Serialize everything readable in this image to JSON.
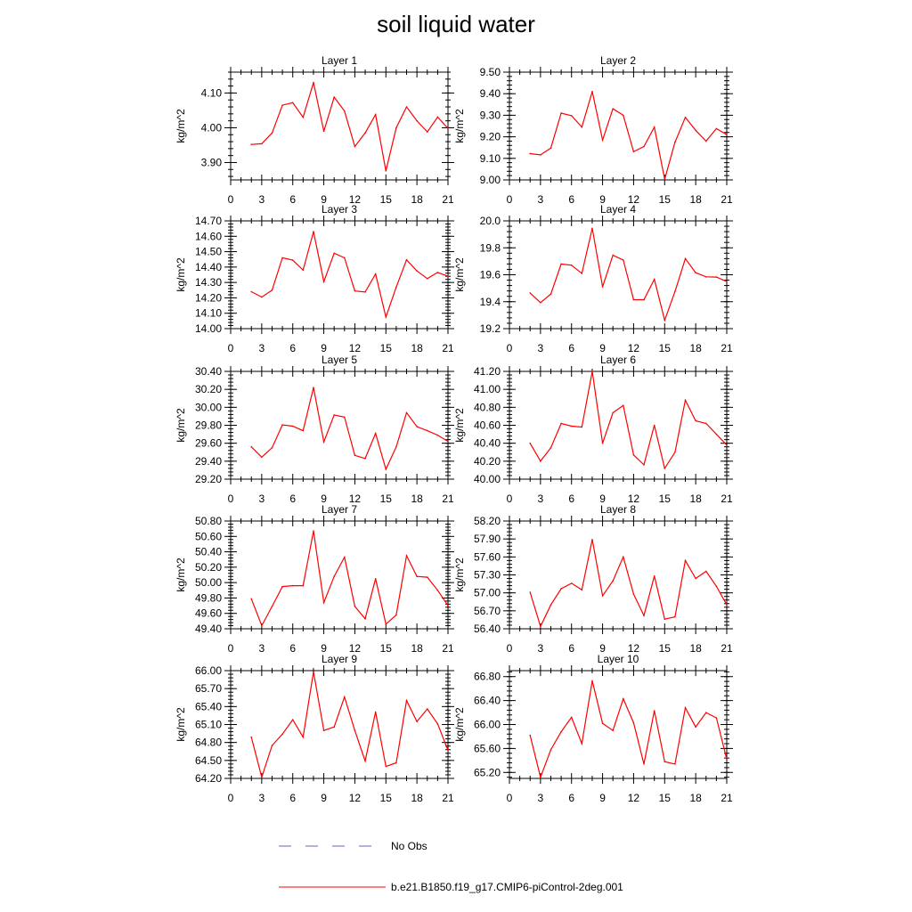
{
  "title": "soil liquid water",
  "legend": {
    "items": [
      {
        "label": "No Obs",
        "color": "#6060c8",
        "style": "dashed"
      },
      {
        "label": "b.e21.B1850.f19_g17.CMIP6-piControl-2deg.001",
        "color": "#ff0000",
        "style": "solid"
      }
    ]
  },
  "chart_data": [
    {
      "type": "line",
      "title": "Layer 1",
      "ylabel": "kg/m^2",
      "xlim": [
        0,
        21
      ],
      "ylim": [
        3.85,
        4.16
      ],
      "xticks": [
        "0",
        "3",
        "6",
        "9",
        "12",
        "15",
        "18",
        "21"
      ],
      "yticks": [
        "3.90",
        "4.00",
        "4.10"
      ],
      "ytick_values": [
        3.9,
        4.0,
        4.1
      ],
      "series": [
        {
          "color": "#ff0000",
          "x": [
            2,
            3,
            4,
            5,
            6,
            7,
            8,
            9,
            10,
            11,
            12,
            13,
            14,
            15,
            16,
            17,
            18,
            19,
            20,
            21
          ],
          "y": [
            3.952,
            3.954,
            3.985,
            4.065,
            4.072,
            4.03,
            4.13,
            3.99,
            4.088,
            4.048,
            3.946,
            3.985,
            4.038,
            3.876,
            4.0,
            4.06,
            4.02,
            3.988,
            4.031,
            3.998
          ]
        }
      ]
    },
    {
      "type": "line",
      "title": "Layer 2",
      "ylabel": "kg/m^2",
      "xlim": [
        0,
        21
      ],
      "ylim": [
        9.0,
        9.5
      ],
      "xticks": [
        "0",
        "3",
        "6",
        "9",
        "12",
        "15",
        "18",
        "21"
      ],
      "yticks": [
        "9.00",
        "9.10",
        "9.20",
        "9.30",
        "9.40",
        "9.50"
      ],
      "ytick_values": [
        9.0,
        9.1,
        9.2,
        9.3,
        9.4,
        9.5
      ],
      "series": [
        {
          "color": "#ff0000",
          "x": [
            2,
            3,
            4,
            5,
            6,
            7,
            8,
            9,
            10,
            11,
            12,
            13,
            14,
            15,
            16,
            17,
            18,
            19,
            20,
            21
          ],
          "y": [
            9.122,
            9.116,
            9.148,
            9.31,
            9.298,
            9.245,
            9.41,
            9.185,
            9.33,
            9.3,
            9.131,
            9.155,
            9.245,
            9.003,
            9.175,
            9.29,
            9.23,
            9.18,
            9.238,
            9.21
          ]
        }
      ]
    },
    {
      "type": "line",
      "title": "Layer 3",
      "ylabel": "kg/m^2",
      "xlim": [
        0,
        21
      ],
      "ylim": [
        14.0,
        14.7
      ],
      "xticks": [
        "0",
        "3",
        "6",
        "9",
        "12",
        "15",
        "18",
        "21"
      ],
      "yticks": [
        "14.00",
        "14.10",
        "14.20",
        "14.30",
        "14.40",
        "14.50",
        "14.60",
        "14.70"
      ],
      "ytick_values": [
        14.0,
        14.1,
        14.2,
        14.3,
        14.4,
        14.5,
        14.6,
        14.7
      ],
      "series": [
        {
          "color": "#ff0000",
          "x": [
            2,
            3,
            4,
            5,
            6,
            7,
            8,
            9,
            10,
            11,
            12,
            13,
            14,
            15,
            16,
            17,
            18,
            19,
            20,
            21
          ],
          "y": [
            14.24,
            14.205,
            14.25,
            14.46,
            14.445,
            14.38,
            14.63,
            14.305,
            14.49,
            14.46,
            14.245,
            14.238,
            14.355,
            14.075,
            14.27,
            14.447,
            14.375,
            14.325,
            14.365,
            14.34
          ]
        }
      ]
    },
    {
      "type": "line",
      "title": "Layer 4",
      "ylabel": "kg/m^2",
      "xlim": [
        0,
        21
      ],
      "ylim": [
        19.2,
        20.0
      ],
      "xticks": [
        "0",
        "3",
        "6",
        "9",
        "12",
        "15",
        "18",
        "21"
      ],
      "yticks": [
        "19.2",
        "19.4",
        "19.6",
        "19.8",
        "20.0"
      ],
      "ytick_values": [
        19.2,
        19.4,
        19.6,
        19.8,
        20.0
      ],
      "series": [
        {
          "color": "#ff0000",
          "x": [
            2,
            3,
            4,
            5,
            6,
            7,
            8,
            9,
            10,
            11,
            12,
            13,
            14,
            15,
            16,
            17,
            18,
            19,
            20,
            21
          ],
          "y": [
            19.465,
            19.393,
            19.457,
            19.68,
            19.671,
            19.61,
            19.945,
            19.51,
            19.745,
            19.71,
            19.415,
            19.415,
            19.566,
            19.262,
            19.476,
            19.72,
            19.615,
            19.585,
            19.583,
            19.55
          ]
        }
      ]
    },
    {
      "type": "line",
      "title": "Layer 5",
      "ylabel": "kg/m^2",
      "xlim": [
        0,
        21
      ],
      "ylim": [
        29.2,
        30.4
      ],
      "xticks": [
        "0",
        "3",
        "6",
        "9",
        "12",
        "15",
        "18",
        "21"
      ],
      "yticks": [
        "29.20",
        "29.40",
        "29.60",
        "29.80",
        "30.00",
        "30.20",
        "30.40"
      ],
      "ytick_values": [
        29.2,
        29.4,
        29.6,
        29.8,
        30.0,
        30.2,
        30.4
      ],
      "series": [
        {
          "color": "#ff0000",
          "x": [
            2,
            3,
            4,
            5,
            6,
            7,
            8,
            9,
            10,
            11,
            12,
            13,
            14,
            15,
            16,
            17,
            18,
            19,
            20,
            21
          ],
          "y": [
            29.56,
            29.445,
            29.55,
            29.805,
            29.79,
            29.74,
            30.22,
            29.615,
            29.915,
            29.89,
            29.465,
            29.43,
            29.71,
            29.31,
            29.56,
            29.94,
            29.785,
            29.74,
            29.69,
            29.62
          ]
        }
      ]
    },
    {
      "type": "line",
      "title": "Layer 6",
      "ylabel": "kg/m^2",
      "xlim": [
        0,
        21
      ],
      "ylim": [
        40.0,
        41.2
      ],
      "xticks": [
        "0",
        "3",
        "6",
        "9",
        "12",
        "15",
        "18",
        "21"
      ],
      "yticks": [
        "40.00",
        "40.20",
        "40.40",
        "40.60",
        "40.80",
        "41.00",
        "41.20"
      ],
      "ytick_values": [
        40.0,
        40.2,
        40.4,
        40.6,
        40.8,
        41.0,
        41.2
      ],
      "series": [
        {
          "color": "#ff0000",
          "x": [
            2,
            3,
            4,
            5,
            6,
            7,
            8,
            9,
            10,
            11,
            12,
            13,
            14,
            15,
            16,
            17,
            18,
            19,
            20,
            21
          ],
          "y": [
            40.4,
            40.2,
            40.35,
            40.62,
            40.59,
            40.58,
            41.2,
            40.4,
            40.74,
            40.82,
            40.27,
            40.16,
            40.6,
            40.12,
            40.3,
            40.88,
            40.65,
            40.62,
            40.5,
            40.38
          ]
        }
      ]
    },
    {
      "type": "line",
      "title": "Layer 7",
      "ylabel": "kg/m^2",
      "xlim": [
        0,
        21
      ],
      "ylim": [
        49.4,
        50.8
      ],
      "xticks": [
        "0",
        "3",
        "6",
        "9",
        "12",
        "15",
        "18",
        "21"
      ],
      "yticks": [
        "49.40",
        "49.60",
        "49.80",
        "50.00",
        "50.20",
        "50.40",
        "50.60",
        "50.80"
      ],
      "ytick_values": [
        49.4,
        49.6,
        49.8,
        50.0,
        50.2,
        50.4,
        50.6,
        50.8
      ],
      "series": [
        {
          "color": "#ff0000",
          "x": [
            2,
            3,
            4,
            5,
            6,
            7,
            8,
            9,
            10,
            11,
            12,
            13,
            14,
            15,
            16,
            17,
            18,
            19,
            20,
            21
          ],
          "y": [
            49.79,
            49.44,
            49.69,
            49.948,
            49.96,
            49.96,
            50.67,
            49.74,
            50.08,
            50.33,
            49.69,
            49.53,
            50.05,
            49.46,
            49.58,
            50.35,
            50.08,
            50.07,
            49.9,
            49.7
          ]
        }
      ]
    },
    {
      "type": "line",
      "title": "Layer 8",
      "ylabel": "kg/m^2",
      "xlim": [
        0,
        21
      ],
      "ylim": [
        56.4,
        58.2
      ],
      "xticks": [
        "0",
        "3",
        "6",
        "9",
        "12",
        "15",
        "18",
        "21"
      ],
      "yticks": [
        "56.40",
        "56.70",
        "57.00",
        "57.30",
        "57.60",
        "57.90",
        "58.20"
      ],
      "ytick_values": [
        56.4,
        56.7,
        57.0,
        57.3,
        57.6,
        57.9,
        58.2
      ],
      "series": [
        {
          "color": "#ff0000",
          "x": [
            2,
            3,
            4,
            5,
            6,
            7,
            8,
            9,
            10,
            11,
            12,
            13,
            14,
            15,
            16,
            17,
            18,
            19,
            20,
            21
          ],
          "y": [
            57.01,
            56.44,
            56.8,
            57.07,
            57.16,
            57.05,
            57.89,
            56.95,
            57.2,
            57.6,
            56.98,
            56.62,
            57.28,
            56.56,
            56.6,
            57.54,
            57.24,
            57.36,
            57.11,
            56.8
          ]
        }
      ]
    },
    {
      "type": "line",
      "title": "Layer 9",
      "ylabel": "kg/m^2",
      "xlim": [
        0,
        21
      ],
      "ylim": [
        64.2,
        66.0
      ],
      "xticks": [
        "0",
        "3",
        "6",
        "9",
        "12",
        "15",
        "18",
        "21"
      ],
      "yticks": [
        "64.20",
        "64.50",
        "64.80",
        "65.10",
        "65.40",
        "65.70",
        "66.00"
      ],
      "ytick_values": [
        64.2,
        64.5,
        64.8,
        65.1,
        65.4,
        65.7,
        66.0
      ],
      "series": [
        {
          "color": "#ff0000",
          "x": [
            2,
            3,
            4,
            5,
            6,
            7,
            8,
            9,
            10,
            11,
            12,
            13,
            14,
            15,
            16,
            17,
            18,
            19,
            20,
            21
          ],
          "y": [
            64.89,
            64.22,
            64.75,
            64.94,
            65.18,
            64.89,
            65.98,
            65.0,
            65.06,
            65.56,
            65.0,
            64.49,
            65.31,
            64.4,
            64.46,
            65.5,
            65.15,
            65.36,
            65.11,
            64.67
          ]
        }
      ]
    },
    {
      "type": "line",
      "title": "Layer 10",
      "ylabel": "kg/m^2",
      "xlim": [
        0,
        21
      ],
      "ylim": [
        65.1,
        66.9
      ],
      "xticks": [
        "0",
        "3",
        "6",
        "9",
        "12",
        "15",
        "18",
        "21"
      ],
      "yticks": [
        "65.20",
        "65.60",
        "66.00",
        "66.40",
        "66.80"
      ],
      "ytick_values": [
        65.2,
        65.6,
        66.0,
        66.4,
        66.8
      ],
      "series": [
        {
          "color": "#ff0000",
          "x": [
            2,
            3,
            4,
            5,
            6,
            7,
            8,
            9,
            10,
            11,
            12,
            13,
            14,
            15,
            16,
            17,
            18,
            19,
            20,
            21
          ],
          "y": [
            65.82,
            65.12,
            65.58,
            65.88,
            66.12,
            65.68,
            66.73,
            66.02,
            65.9,
            66.43,
            66.03,
            65.34,
            66.23,
            65.38,
            65.34,
            66.28,
            65.96,
            66.2,
            66.11,
            65.42
          ]
        }
      ]
    }
  ]
}
